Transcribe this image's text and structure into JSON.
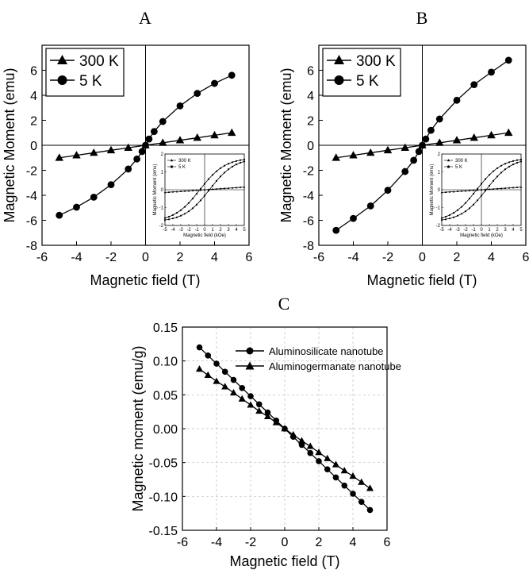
{
  "chart_data": [
    {
      "panel_label": "A",
      "type": "scatter",
      "xlabel": "Magnetic field (T)",
      "ylabel": "Magnetic Moment (emu)",
      "xlim": [
        -6,
        6
      ],
      "ylim": [
        -8,
        8
      ],
      "xticks": [
        -6,
        -4,
        -2,
        0,
        2,
        4,
        6
      ],
      "yticks": [
        -8,
        -6,
        -4,
        -2,
        0,
        2,
        4,
        6
      ],
      "grid": false,
      "legend_position": "top-left",
      "series": [
        {
          "name": "300 K",
          "marker": "triangle",
          "x": [
            -5,
            -4,
            -3,
            -2,
            -1,
            0,
            1,
            2,
            3,
            4,
            5
          ],
          "y": [
            -1.0,
            -0.8,
            -0.6,
            -0.4,
            -0.2,
            0,
            0.2,
            0.4,
            0.6,
            0.8,
            1.0
          ]
        },
        {
          "name": "5 K",
          "marker": "circle",
          "x": [
            -5,
            -4,
            -3,
            -2,
            -1,
            -0.5,
            -0.2,
            0,
            0.2,
            0.5,
            1,
            2,
            3,
            4,
            5
          ],
          "y": [
            -5.6,
            -4.95,
            -4.15,
            -3.15,
            -1.9,
            -1.1,
            -0.5,
            0,
            0.5,
            1.1,
            1.9,
            3.15,
            4.15,
            4.95,
            5.6
          ]
        }
      ],
      "inset": {
        "xlabel": "Magnetic field (kOe)",
        "ylabel": "Magnetic Moment (emu)",
        "xticks": [
          -5,
          -4,
          -3,
          -2,
          -1,
          0,
          1,
          2,
          3,
          4,
          5
        ],
        "yticks": [
          -2,
          -1,
          0,
          1,
          2
        ],
        "series_names": [
          "300 K",
          "5 K"
        ]
      }
    },
    {
      "panel_label": "B",
      "type": "scatter",
      "xlabel": "Magnetic field (T)",
      "ylabel": "Magnetic Moment (emu)",
      "xlim": [
        -6,
        6
      ],
      "ylim": [
        -8,
        8
      ],
      "xticks": [
        -6,
        -4,
        -2,
        0,
        2,
        4,
        6
      ],
      "yticks": [
        -8,
        -6,
        -4,
        -2,
        0,
        2,
        4,
        6
      ],
      "grid": false,
      "legend_position": "top-left",
      "series": [
        {
          "name": "300 K",
          "marker": "triangle",
          "x": [
            -5,
            -4,
            -3,
            -2,
            -1,
            0,
            1,
            2,
            3,
            4,
            5
          ],
          "y": [
            -1.0,
            -0.8,
            -0.6,
            -0.4,
            -0.2,
            0,
            0.2,
            0.4,
            0.6,
            0.8,
            1.0
          ]
        },
        {
          "name": "5 K",
          "marker": "circle",
          "x": [
            -5,
            -4,
            -3,
            -2,
            -1,
            -0.5,
            -0.2,
            0,
            0.2,
            0.5,
            1,
            2,
            3,
            4,
            5
          ],
          "y": [
            -6.8,
            -5.85,
            -4.85,
            -3.6,
            -2.1,
            -1.2,
            -0.5,
            0,
            0.5,
            1.2,
            2.1,
            3.6,
            4.85,
            5.85,
            6.8
          ]
        }
      ],
      "inset": {
        "xlabel": "Magnetic field (kOe)",
        "ylabel": "Magnetic Moment (emu)",
        "xticks": [
          -5,
          -4,
          -3,
          -2,
          -1,
          0,
          1,
          2,
          3,
          4,
          5
        ],
        "yticks": [
          -2,
          -1,
          0,
          1,
          2
        ],
        "series_names": [
          "300 K",
          "5 K"
        ]
      }
    },
    {
      "panel_label": "C",
      "type": "scatter",
      "xlabel": "Magnetic field (T)",
      "ylabel": "Magnetic mcment (emu/g)",
      "xlim": [
        -6,
        6
      ],
      "ylim": [
        -0.15,
        0.15
      ],
      "xticks": [
        -6,
        -4,
        -2,
        0,
        2,
        4,
        6
      ],
      "yticks": [
        -0.15,
        -0.1,
        -0.05,
        0.0,
        0.05,
        0.1,
        0.15
      ],
      "ytick_labels": [
        "-0.15",
        "-0.10",
        "-0.05",
        "0.00",
        "0.05",
        "0.10",
        "0.15"
      ],
      "grid": true,
      "legend_position": "top-right",
      "series": [
        {
          "name": "Aluminosilicate nanotube",
          "marker": "circle",
          "x": [
            -5.0,
            -4.5,
            -4.0,
            -3.5,
            -3.0,
            -2.5,
            -2.0,
            -1.5,
            -1.0,
            -0.5,
            0.0,
            0.5,
            1.0,
            1.5,
            2.0,
            2.5,
            3.0,
            3.5,
            4.0,
            4.5,
            5.0
          ],
          "y": [
            0.12,
            0.108,
            0.096,
            0.084,
            0.072,
            0.06,
            0.048,
            0.036,
            0.024,
            0.012,
            0.0,
            -0.012,
            -0.024,
            -0.036,
            -0.048,
            -0.06,
            -0.072,
            -0.084,
            -0.096,
            -0.108,
            -0.12
          ]
        },
        {
          "name": "Aluminogermanate nanotube",
          "marker": "triangle",
          "x": [
            -5.0,
            -4.5,
            -4.0,
            -3.5,
            -3.0,
            -2.5,
            -2.0,
            -1.5,
            -1.0,
            -0.5,
            0.0,
            0.5,
            1.0,
            1.5,
            2.0,
            2.5,
            3.0,
            3.5,
            4.0,
            4.5,
            5.0
          ],
          "y": [
            0.088,
            0.079,
            0.07,
            0.062,
            0.053,
            0.044,
            0.035,
            0.026,
            0.018,
            0.009,
            0.0,
            -0.009,
            -0.018,
            -0.026,
            -0.035,
            -0.044,
            -0.053,
            -0.062,
            -0.07,
            -0.079,
            -0.088
          ]
        }
      ]
    }
  ]
}
